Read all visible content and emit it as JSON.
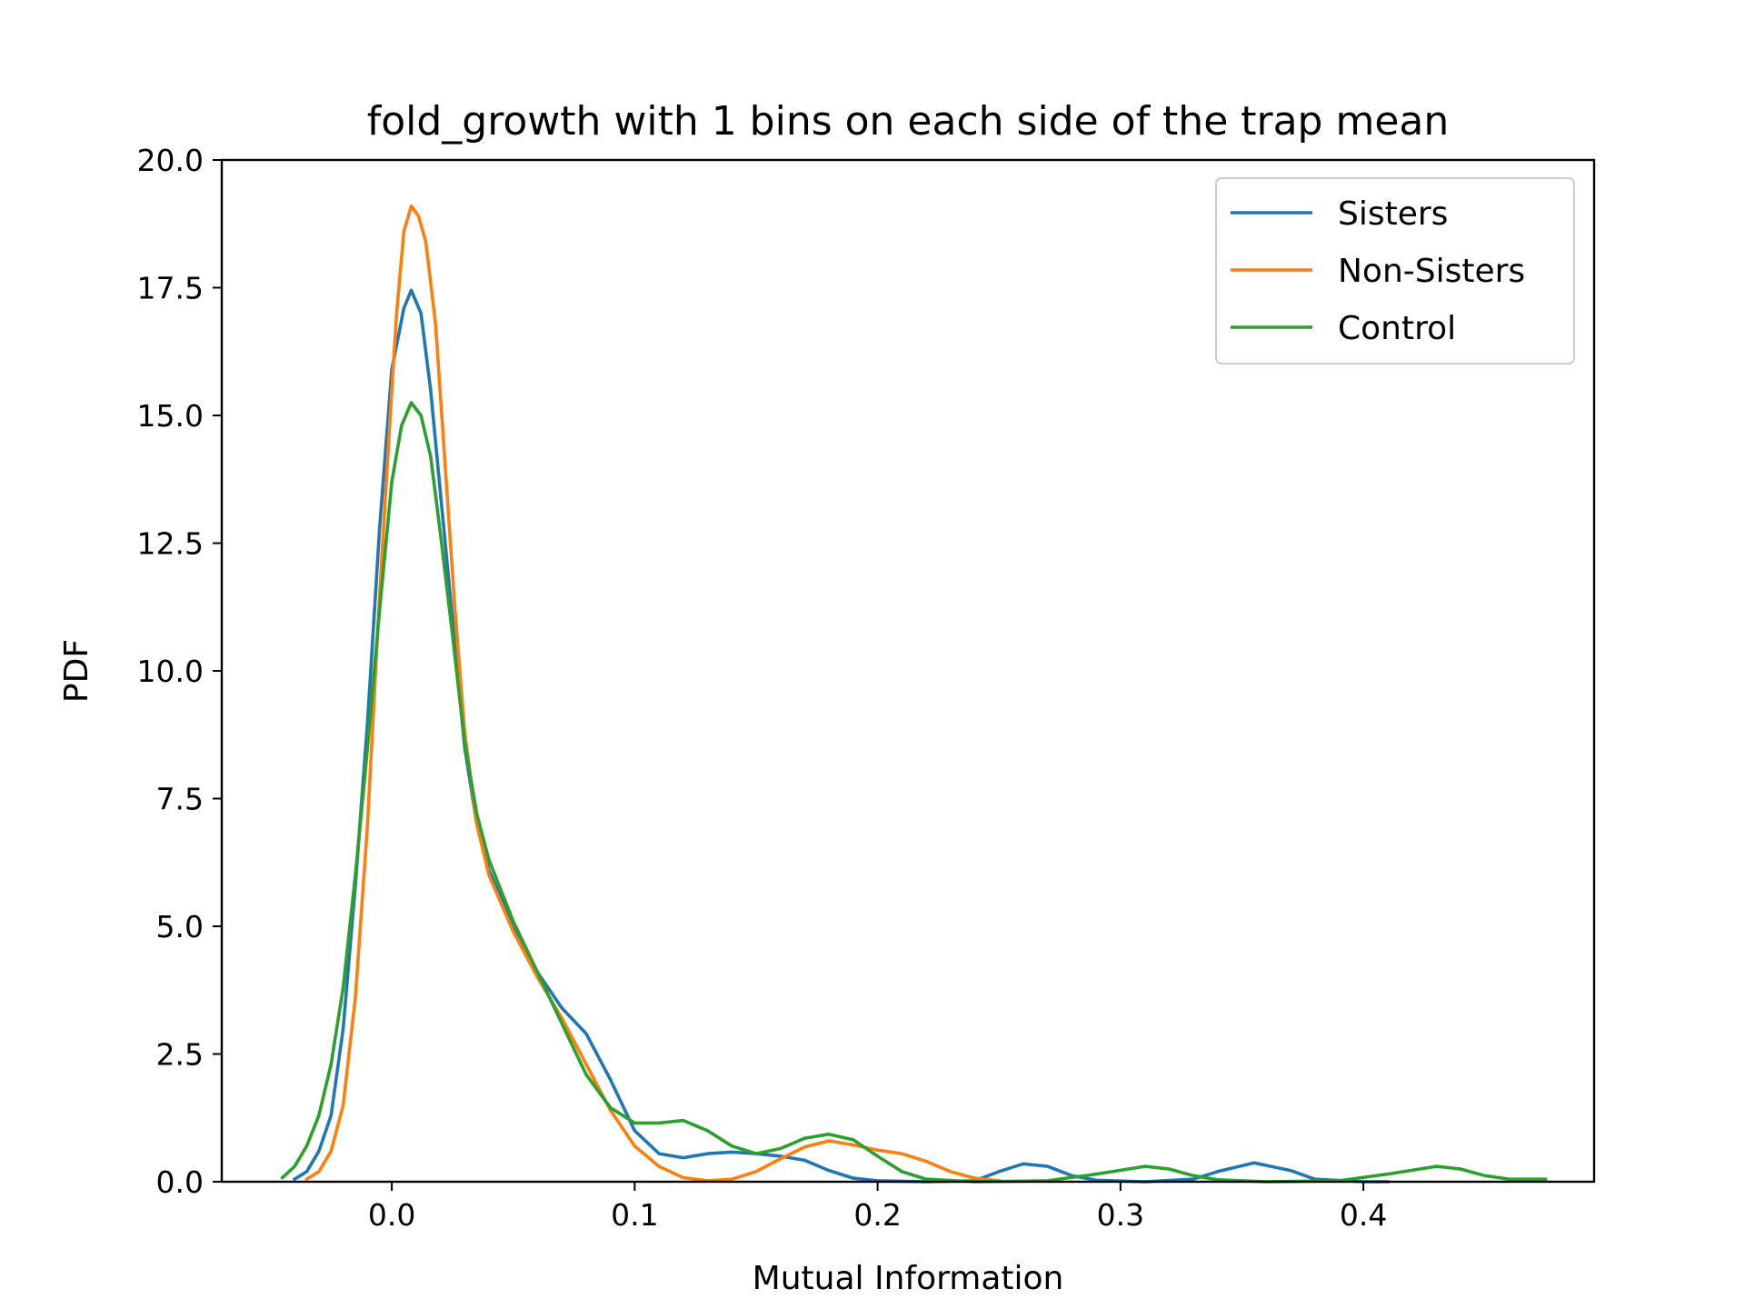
{
  "chart_data": {
    "type": "line",
    "title": "fold_growth with 1 bins on each side of the trap mean",
    "xlabel": "Mutual Information",
    "ylabel": "PDF",
    "xlim": [
      -0.07,
      0.495
    ],
    "ylim": [
      0,
      20
    ],
    "xticks": [
      0.0,
      0.1,
      0.2,
      0.3,
      0.4
    ],
    "xtick_labels": [
      "0.0",
      "0.1",
      "0.2",
      "0.3",
      "0.4"
    ],
    "yticks": [
      0,
      2.5,
      5,
      7.5,
      10,
      12.5,
      15,
      17.5,
      20
    ],
    "ytick_labels": [
      "0.0",
      "2.5",
      "5.0",
      "7.5",
      "10.0",
      "12.5",
      "15.0",
      "17.5",
      "20.0"
    ],
    "grid": false,
    "legend": "top-right",
    "series": [
      {
        "name": "Sisters",
        "color": "#1f77b4",
        "points": [
          [
            -0.04,
            0.05
          ],
          [
            -0.035,
            0.2
          ],
          [
            -0.03,
            0.6
          ],
          [
            -0.025,
            1.3
          ],
          [
            -0.02,
            3.0
          ],
          [
            -0.015,
            5.8
          ],
          [
            -0.01,
            9.0
          ],
          [
            -0.005,
            12.8
          ],
          [
            0.0,
            15.9
          ],
          [
            0.005,
            17.1
          ],
          [
            0.008,
            17.45
          ],
          [
            0.012,
            17.0
          ],
          [
            0.016,
            15.5
          ],
          [
            0.02,
            13.5
          ],
          [
            0.025,
            11.0
          ],
          [
            0.03,
            8.5
          ],
          [
            0.035,
            7.0
          ],
          [
            0.04,
            6.1
          ],
          [
            0.05,
            5.0
          ],
          [
            0.06,
            4.1
          ],
          [
            0.07,
            3.4
          ],
          [
            0.08,
            2.9
          ],
          [
            0.09,
            2.0
          ],
          [
            0.1,
            1.0
          ],
          [
            0.11,
            0.55
          ],
          [
            0.12,
            0.47
          ],
          [
            0.13,
            0.55
          ],
          [
            0.14,
            0.58
          ],
          [
            0.15,
            0.55
          ],
          [
            0.16,
            0.5
          ],
          [
            0.17,
            0.42
          ],
          [
            0.18,
            0.22
          ],
          [
            0.19,
            0.07
          ],
          [
            0.2,
            0.02
          ],
          [
            0.22,
            0.0
          ],
          [
            0.24,
            0.02
          ],
          [
            0.25,
            0.2
          ],
          [
            0.26,
            0.35
          ],
          [
            0.27,
            0.3
          ],
          [
            0.28,
            0.12
          ],
          [
            0.29,
            0.03
          ],
          [
            0.31,
            0.0
          ],
          [
            0.33,
            0.05
          ],
          [
            0.34,
            0.2
          ],
          [
            0.355,
            0.37
          ],
          [
            0.37,
            0.22
          ],
          [
            0.38,
            0.05
          ],
          [
            0.4,
            0.0
          ],
          [
            0.41,
            0.0
          ]
        ]
      },
      {
        "name": "Non-Sisters",
        "color": "#ff7f0e",
        "points": [
          [
            -0.035,
            0.05
          ],
          [
            -0.03,
            0.2
          ],
          [
            -0.025,
            0.6
          ],
          [
            -0.02,
            1.5
          ],
          [
            -0.015,
            3.6
          ],
          [
            -0.01,
            7.0
          ],
          [
            -0.005,
            11.5
          ],
          [
            0.0,
            15.5
          ],
          [
            0.002,
            17.0
          ],
          [
            0.005,
            18.6
          ],
          [
            0.008,
            19.1
          ],
          [
            0.011,
            18.9
          ],
          [
            0.014,
            18.4
          ],
          [
            0.018,
            16.8
          ],
          [
            0.022,
            14.0
          ],
          [
            0.026,
            11.2
          ],
          [
            0.03,
            8.8
          ],
          [
            0.035,
            7.0
          ],
          [
            0.04,
            6.0
          ],
          [
            0.05,
            4.9
          ],
          [
            0.06,
            4.0
          ],
          [
            0.07,
            3.2
          ],
          [
            0.08,
            2.3
          ],
          [
            0.09,
            1.4
          ],
          [
            0.1,
            0.7
          ],
          [
            0.11,
            0.3
          ],
          [
            0.12,
            0.08
          ],
          [
            0.13,
            0.02
          ],
          [
            0.14,
            0.05
          ],
          [
            0.15,
            0.2
          ],
          [
            0.16,
            0.45
          ],
          [
            0.17,
            0.68
          ],
          [
            0.18,
            0.8
          ],
          [
            0.19,
            0.72
          ],
          [
            0.2,
            0.62
          ],
          [
            0.21,
            0.55
          ],
          [
            0.22,
            0.4
          ],
          [
            0.23,
            0.2
          ],
          [
            0.24,
            0.07
          ],
          [
            0.25,
            0.02
          ]
        ]
      },
      {
        "name": "Control",
        "color": "#2ca02c",
        "points": [
          [
            -0.045,
            0.08
          ],
          [
            -0.04,
            0.3
          ],
          [
            -0.035,
            0.7
          ],
          [
            -0.03,
            1.3
          ],
          [
            -0.025,
            2.3
          ],
          [
            -0.02,
            3.8
          ],
          [
            -0.015,
            6.0
          ],
          [
            -0.01,
            8.5
          ],
          [
            -0.005,
            11.2
          ],
          [
            0.0,
            13.7
          ],
          [
            0.004,
            14.8
          ],
          [
            0.008,
            15.25
          ],
          [
            0.012,
            15.0
          ],
          [
            0.016,
            14.2
          ],
          [
            0.02,
            12.7
          ],
          [
            0.025,
            10.7
          ],
          [
            0.03,
            8.6
          ],
          [
            0.035,
            7.2
          ],
          [
            0.04,
            6.3
          ],
          [
            0.05,
            5.1
          ],
          [
            0.06,
            4.1
          ],
          [
            0.07,
            3.1
          ],
          [
            0.08,
            2.1
          ],
          [
            0.09,
            1.45
          ],
          [
            0.1,
            1.15
          ],
          [
            0.11,
            1.15
          ],
          [
            0.12,
            1.2
          ],
          [
            0.13,
            1.0
          ],
          [
            0.14,
            0.7
          ],
          [
            0.15,
            0.55
          ],
          [
            0.16,
            0.65
          ],
          [
            0.17,
            0.85
          ],
          [
            0.18,
            0.93
          ],
          [
            0.19,
            0.82
          ],
          [
            0.2,
            0.5
          ],
          [
            0.21,
            0.2
          ],
          [
            0.22,
            0.05
          ],
          [
            0.24,
            0.0
          ],
          [
            0.27,
            0.02
          ],
          [
            0.29,
            0.15
          ],
          [
            0.31,
            0.3
          ],
          [
            0.32,
            0.25
          ],
          [
            0.33,
            0.12
          ],
          [
            0.34,
            0.04
          ],
          [
            0.36,
            0.0
          ],
          [
            0.39,
            0.02
          ],
          [
            0.41,
            0.15
          ],
          [
            0.43,
            0.3
          ],
          [
            0.44,
            0.25
          ],
          [
            0.45,
            0.12
          ],
          [
            0.46,
            0.05
          ],
          [
            0.475,
            0.05
          ]
        ]
      }
    ]
  }
}
